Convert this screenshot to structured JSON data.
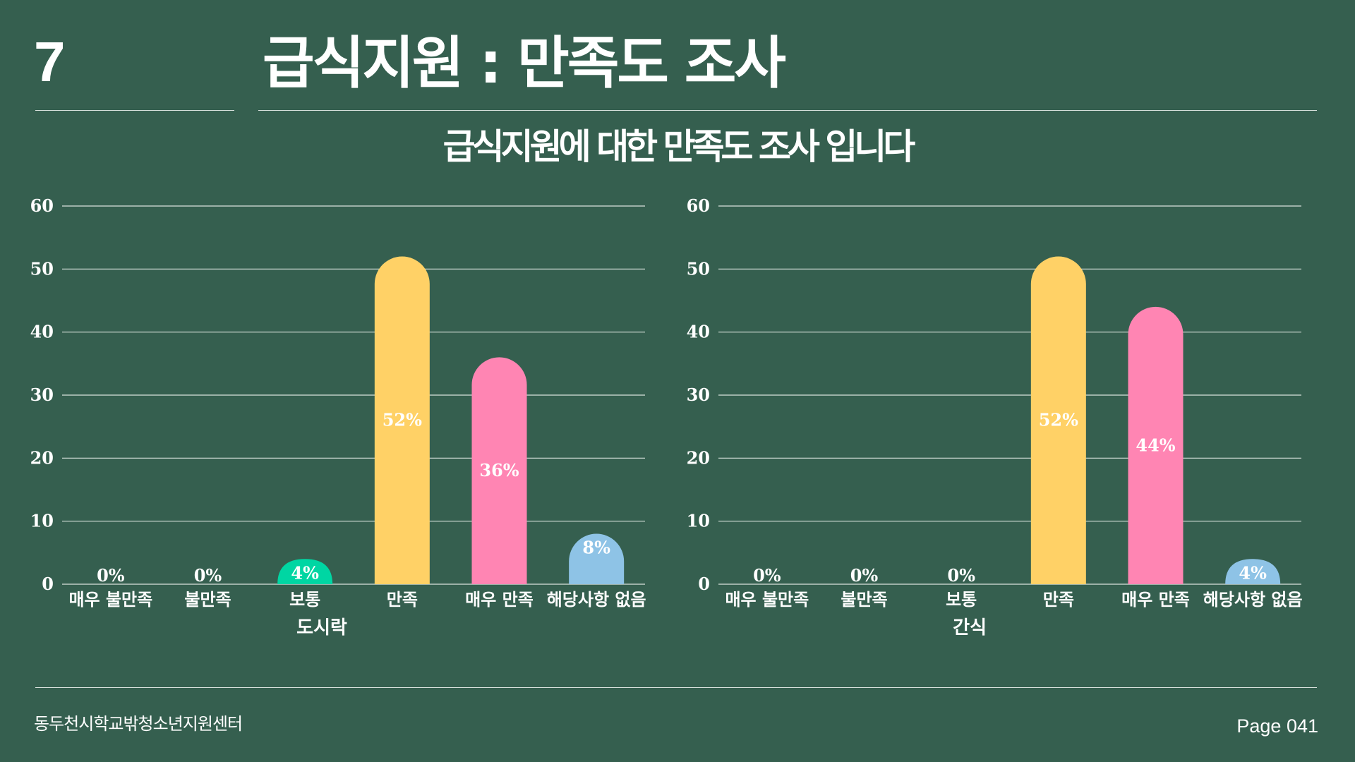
{
  "header": {
    "page_number": "7",
    "title": "급식지원 : 만족도 조사",
    "subtitle": "급식지원에 대한 만족도 조사 입니다"
  },
  "footer": {
    "organization": "동두천시학교밖청소년지원센터",
    "page_label": "Page 041"
  },
  "colors": {
    "background": "#355F4F",
    "text": "#FFFFFF",
    "gridline": "#D9E2DD",
    "legend_marker": "#FF85B3",
    "bar_colors": [
      "#00D6A3",
      "#00D6A3",
      "#00D6A3",
      "#FFD166",
      "#FF85B3",
      "#8EC3E6"
    ]
  },
  "chart_data": [
    {
      "type": "bar",
      "title": "",
      "xlabel": "",
      "ylabel": "",
      "categories": [
        "매우 불만족",
        "불만족",
        "보통",
        "만족",
        "매우 만족",
        "해당사항 없음"
      ],
      "series": [
        {
          "name": "도시락",
          "values": [
            0,
            0,
            4,
            52,
            36,
            8
          ]
        }
      ],
      "data_labels": [
        "0%",
        "0%",
        "4%",
        "52%",
        "36%",
        "8%"
      ],
      "yticks": [
        "0",
        "10",
        "20",
        "30",
        "40",
        "50",
        "60"
      ],
      "ylim": [
        0,
        60
      ],
      "grid": true,
      "legend": "bottom"
    },
    {
      "type": "bar",
      "title": "",
      "xlabel": "",
      "ylabel": "",
      "categories": [
        "매우 불만족",
        "불만족",
        "보통",
        "만족",
        "매우 만족",
        "해당사항 없음"
      ],
      "series": [
        {
          "name": "간식",
          "values": [
            0,
            0,
            0,
            52,
            44,
            4
          ]
        }
      ],
      "data_labels": [
        "0%",
        "0%",
        "0%",
        "52%",
        "44%",
        "4%"
      ],
      "yticks": [
        "0",
        "10",
        "20",
        "30",
        "40",
        "50",
        "60"
      ],
      "ylim": [
        0,
        60
      ],
      "grid": true,
      "legend": "bottom"
    }
  ]
}
